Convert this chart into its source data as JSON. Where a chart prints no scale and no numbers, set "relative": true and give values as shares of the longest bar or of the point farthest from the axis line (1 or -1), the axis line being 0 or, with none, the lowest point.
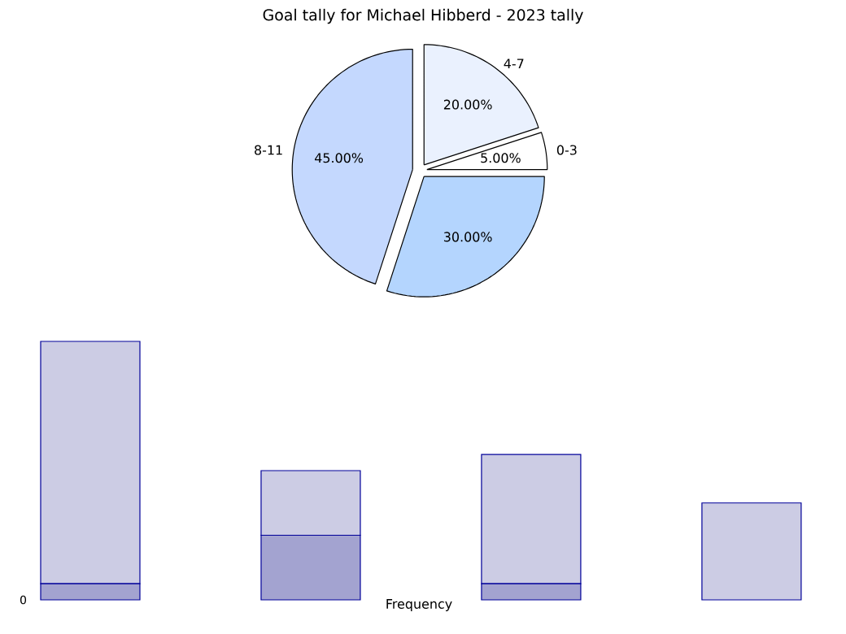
{
  "chart_data": [
    {
      "type": "pie",
      "title": "Goal tally for Michael Hibberd - 2023 tally",
      "categories": [
        "0-3",
        "4-7",
        "8-11",
        null
      ],
      "values": [
        5,
        20,
        45,
        30
      ],
      "value_labels": [
        "5.00%",
        "20.00%",
        "45.00%",
        "30.00%"
      ],
      "colors": [
        "#ffffff",
        "#eaf1fe",
        "#c4d8fe",
        "#b4d5fe"
      ]
    },
    {
      "type": "bar",
      "stacked": true,
      "relative": true,
      "xlabel": "Frequency",
      "annotations": [
        "0"
      ],
      "categories": [
        null,
        null,
        null,
        null
      ],
      "series": [
        {
          "color": "#a3a3d0",
          "values": [
            0.0625,
            0.25,
            0.0625,
            0
          ]
        },
        {
          "color": "#cccce4",
          "values": [
            0.9375,
            0.25,
            0.5,
            0.375
          ]
        }
      ]
    }
  ]
}
